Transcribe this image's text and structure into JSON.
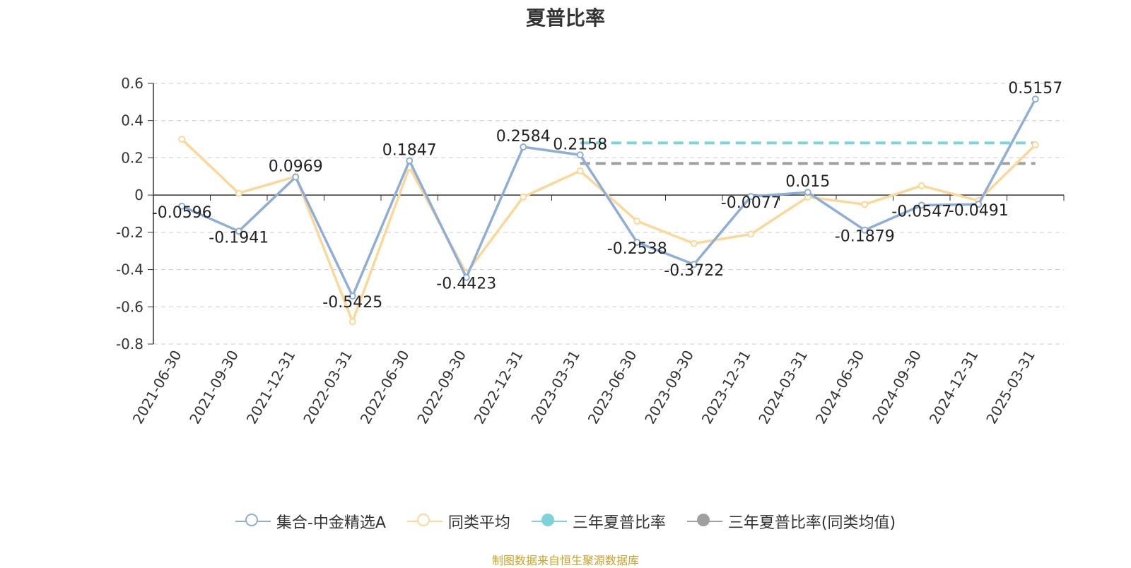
{
  "chart_data": {
    "type": "line",
    "title": "夏普比率",
    "categories": [
      "2021-06-30",
      "2021-09-30",
      "2021-12-31",
      "2022-03-31",
      "2022-06-30",
      "2022-09-30",
      "2022-12-31",
      "2023-03-31",
      "2023-06-30",
      "2023-09-30",
      "2023-12-31",
      "2024-03-31",
      "2024-06-30",
      "2024-09-30",
      "2024-12-31",
      "2025-03-31"
    ],
    "ylim": [
      -0.8,
      0.6
    ],
    "yticks": [
      "0.6",
      "0.4",
      "0.2",
      "0",
      "-0.2",
      "-0.4",
      "-0.6",
      "-0.8"
    ],
    "ytick_values": [
      0.6,
      0.4,
      0.2,
      0,
      -0.2,
      -0.4,
      -0.6,
      -0.8
    ],
    "grid": true,
    "legend_position": "bottom",
    "series": [
      {
        "name": "集合-中金精选A",
        "color": "#8eaed8",
        "values": [
          -0.0596,
          -0.1941,
          0.0969,
          -0.5425,
          0.1847,
          -0.4423,
          0.2584,
          0.2158,
          -0.2538,
          -0.3722,
          -0.0077,
          0.015,
          -0.1879,
          -0.0547,
          -0.0491,
          0.5157
        ],
        "labels": [
          "-0.0596",
          "-0.1941",
          "0.0969",
          "-0.5425",
          "0.1847",
          "-0.4423",
          "0.2584",
          "0.2158",
          "-0.2538",
          "-0.3722",
          "-0.0077",
          "0.015",
          "-0.1879",
          "-0.0547",
          "-0.0491",
          "0.5157"
        ]
      },
      {
        "name": "同类平均",
        "color": "#fcd898",
        "values": [
          0.3,
          0.01,
          0.1,
          -0.68,
          0.15,
          -0.42,
          -0.01,
          0.13,
          -0.14,
          -0.26,
          -0.21,
          -0.01,
          -0.05,
          0.05,
          -0.03,
          0.27
        ]
      }
    ],
    "reference_lines": [
      {
        "name": "三年夏普比率",
        "color": "#7dd3d8",
        "value": 0.28,
        "from_category": "2023-03-31",
        "to_category": "2025-03-31"
      },
      {
        "name": "三年夏普比率(同类均值)",
        "color": "#a0a0a0",
        "value": 0.17,
        "from_category": "2023-03-31",
        "to_category": "2025-03-31"
      }
    ]
  },
  "legend": {
    "items": [
      {
        "label": "集合-中金精选A",
        "color": "#8eaed8",
        "style": "hollow-circle"
      },
      {
        "label": "同类平均",
        "color": "#fcd898",
        "style": "hollow-circle"
      },
      {
        "label": "三年夏普比率",
        "color": "#7dd3d8",
        "style": "filled-circle"
      },
      {
        "label": "三年夏普比率(同类均值)",
        "color": "#a0a0a0",
        "style": "filled-circle"
      }
    ]
  },
  "source_text": "制图数据来自恒生聚源数据库"
}
